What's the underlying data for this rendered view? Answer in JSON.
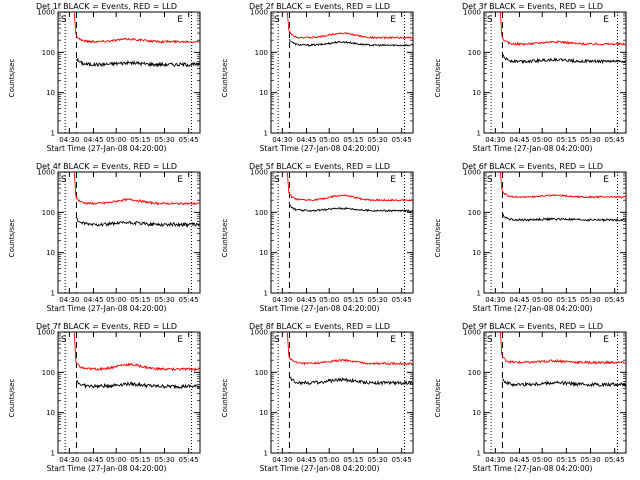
{
  "chart_data": [
    {
      "type": "line",
      "title": "Det 1f BLACK = Events, RED = LLD",
      "xlabel": "Start Time (27-Jan-08 04:20:00)",
      "ylabel": "Counts/sec",
      "yscale": "log",
      "ylim": [
        1,
        1000
      ],
      "x_ticks": [
        "04:30",
        "04:45",
        "05:00",
        "05:15",
        "05:30",
        "05:45"
      ],
      "y_ticks": [
        "1",
        "10",
        "100",
        "1000"
      ],
      "markers": [
        "S",
        "E"
      ],
      "series": [
        {
          "color": "#000000",
          "level": 50,
          "bump": 1.1,
          "noise": 0.1
        },
        {
          "color": "#ff0000",
          "level": 185,
          "bump": 1.15,
          "noise": 0.06
        }
      ]
    },
    {
      "type": "line",
      "title": "Det 2f BLACK = Events, RED = LLD",
      "xlabel": "Start Time (27-Jan-08 04:20:00)",
      "ylabel": "Counts/sec",
      "yscale": "log",
      "ylim": [
        1,
        1000
      ],
      "x_ticks": [
        "04:30",
        "04:45",
        "05:00",
        "05:15",
        "05:30",
        "05:45"
      ],
      "y_ticks": [
        "1",
        "10",
        "100",
        "1000"
      ],
      "markers": [
        "S",
        "E"
      ],
      "series": [
        {
          "color": "#000000",
          "level": 150,
          "bump": 1.2,
          "noise": 0.05
        },
        {
          "color": "#ff0000",
          "level": 230,
          "bump": 1.3,
          "noise": 0.05
        }
      ]
    },
    {
      "type": "line",
      "title": "Det 3f BLACK = Events, RED = LLD",
      "xlabel": "Start Time (27-Jan-08 04:20:00)",
      "ylabel": "Counts/sec",
      "yscale": "log",
      "ylim": [
        1,
        1000
      ],
      "x_ticks": [
        "04:30",
        "04:45",
        "05:00",
        "05:15",
        "05:30",
        "05:45"
      ],
      "y_ticks": [
        "1",
        "10",
        "100",
        "1000"
      ],
      "markers": [
        "S",
        "E"
      ],
      "series": [
        {
          "color": "#000000",
          "level": 60,
          "bump": 1.1,
          "noise": 0.08
        },
        {
          "color": "#ff0000",
          "level": 160,
          "bump": 1.15,
          "noise": 0.06
        }
      ]
    },
    {
      "type": "line",
      "title": "Det 4f BLACK = Events, RED = LLD",
      "xlabel": "Start Time (27-Jan-08 04:20:00)",
      "ylabel": "Counts/sec",
      "yscale": "log",
      "ylim": [
        1,
        1000
      ],
      "x_ticks": [
        "04:30",
        "04:45",
        "05:00",
        "05:15",
        "05:30",
        "05:45"
      ],
      "y_ticks": [
        "1",
        "10",
        "100",
        "1000"
      ],
      "markers": [
        "S",
        "E"
      ],
      "series": [
        {
          "color": "#000000",
          "level": 50,
          "bump": 1.1,
          "noise": 0.1
        },
        {
          "color": "#ff0000",
          "level": 165,
          "bump": 1.25,
          "noise": 0.06
        }
      ]
    },
    {
      "type": "line",
      "title": "Det 5f BLACK = Events, RED = LLD",
      "xlabel": "Start Time (27-Jan-08 04:20:00)",
      "ylabel": "Counts/sec",
      "yscale": "log",
      "ylim": [
        1,
        1000
      ],
      "x_ticks": [
        "04:30",
        "04:45",
        "05:00",
        "05:15",
        "05:30",
        "05:45"
      ],
      "y_ticks": [
        "1",
        "10",
        "100",
        "1000"
      ],
      "markers": [
        "S",
        "E"
      ],
      "series": [
        {
          "color": "#000000",
          "level": 110,
          "bump": 1.15,
          "noise": 0.05
        },
        {
          "color": "#ff0000",
          "level": 200,
          "bump": 1.3,
          "noise": 0.05
        }
      ]
    },
    {
      "type": "line",
      "title": "Det 6f BLACK = Events, RED = LLD",
      "xlabel": "Start Time (27-Jan-08 04:20:00)",
      "ylabel": "Counts/sec",
      "yscale": "log",
      "ylim": [
        1,
        1000
      ],
      "x_ticks": [
        "04:30",
        "04:45",
        "05:00",
        "05:15",
        "05:30",
        "05:45"
      ],
      "y_ticks": [
        "1",
        "10",
        "100",
        "1000"
      ],
      "markers": [
        "S",
        "E"
      ],
      "series": [
        {
          "color": "#000000",
          "level": 65,
          "bump": 1.05,
          "noise": 0.06
        },
        {
          "color": "#ff0000",
          "level": 240,
          "bump": 1.1,
          "noise": 0.05
        }
      ]
    },
    {
      "type": "line",
      "title": "Det 7f BLACK = Events, RED = LLD",
      "xlabel": "Start Time (27-Jan-08 04:20:00)",
      "ylabel": "Counts/sec",
      "yscale": "log",
      "ylim": [
        1,
        1000
      ],
      "x_ticks": [
        "04:30",
        "04:45",
        "05:00",
        "05:15",
        "05:30",
        "05:45"
      ],
      "y_ticks": [
        "1",
        "10",
        "100",
        "1000"
      ],
      "markers": [
        "S",
        "E"
      ],
      "series": [
        {
          "color": "#000000",
          "level": 45,
          "bump": 1.15,
          "noise": 0.1
        },
        {
          "color": "#ff0000",
          "level": 120,
          "bump": 1.3,
          "noise": 0.07
        }
      ]
    },
    {
      "type": "line",
      "title": "Det 8f BLACK = Events, RED = LLD",
      "xlabel": "Start Time (27-Jan-08 04:20:00)",
      "ylabel": "Counts/sec",
      "yscale": "log",
      "ylim": [
        1,
        1000
      ],
      "x_ticks": [
        "04:30",
        "04:45",
        "05:00",
        "05:15",
        "05:30",
        "05:45"
      ],
      "y_ticks": [
        "1",
        "10",
        "100",
        "1000"
      ],
      "markers": [
        "S",
        "E"
      ],
      "series": [
        {
          "color": "#000000",
          "level": 55,
          "bump": 1.2,
          "noise": 0.09
        },
        {
          "color": "#ff0000",
          "level": 165,
          "bump": 1.2,
          "noise": 0.06
        }
      ]
    },
    {
      "type": "line",
      "title": "Det 9f BLACK = Events, RED = LLD",
      "xlabel": "Start Time (27-Jan-08 04:20:00)",
      "ylabel": "Counts/sec",
      "yscale": "log",
      "ylim": [
        1,
        1000
      ],
      "x_ticks": [
        "04:30",
        "04:45",
        "05:00",
        "05:15",
        "05:30",
        "05:45"
      ],
      "y_ticks": [
        "1",
        "10",
        "100",
        "1000"
      ],
      "markers": [
        "S",
        "E"
      ],
      "series": [
        {
          "color": "#000000",
          "level": 50,
          "bump": 1.1,
          "noise": 0.1
        },
        {
          "color": "#ff0000",
          "level": 175,
          "bump": 1.1,
          "noise": 0.07
        }
      ]
    }
  ]
}
